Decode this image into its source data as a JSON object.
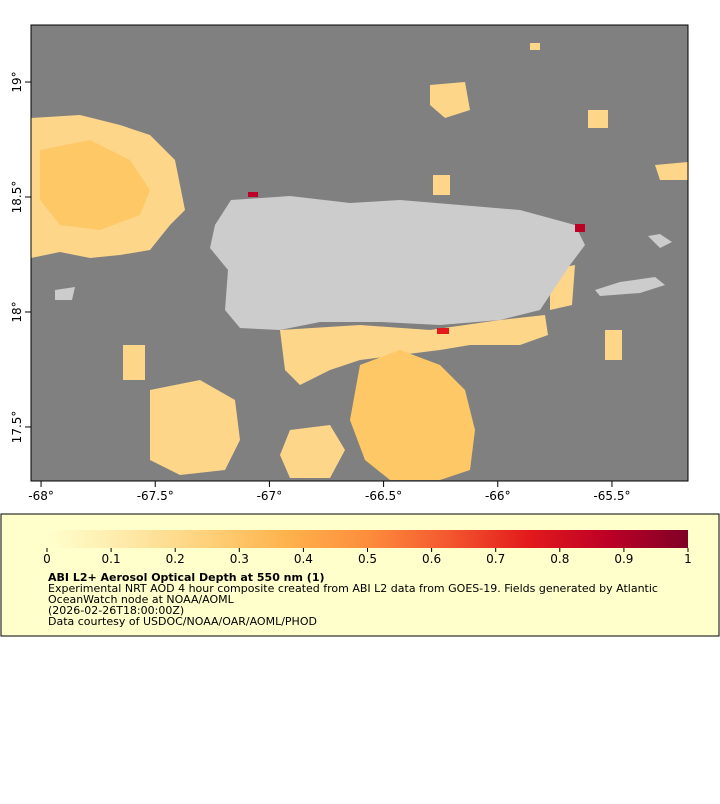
{
  "map": {
    "xticks": [
      {
        "value": -68,
        "label": "-68°"
      },
      {
        "value": -67.5,
        "label": "-67.5°"
      },
      {
        "value": -67,
        "label": "-67°"
      },
      {
        "value": -66.5,
        "label": "-66.5°"
      },
      {
        "value": -66,
        "label": "-66°"
      },
      {
        "value": -65.5,
        "label": "-65.5°"
      }
    ],
    "yticks": [
      {
        "value": 19,
        "label": "19°"
      },
      {
        "value": 18.5,
        "label": "18.5°"
      },
      {
        "value": 18,
        "label": "18°"
      },
      {
        "value": 17.5,
        "label": "17.5°"
      }
    ],
    "xlim": [
      -68.044,
      -65.167
    ],
    "ylim": [
      17.265,
      19.248
    ],
    "colorbar": {
      "ticks": [
        0,
        0.1,
        0.2,
        0.3,
        0.4,
        0.5,
        0.6,
        0.7,
        0.8,
        0.9,
        1
      ],
      "colors": [
        "#ffffcc",
        "#fee9a8",
        "#fed17a",
        "#feb24c",
        "#fd8d3c",
        "#f4582f",
        "#e31a1c",
        "#bd0026",
        "#800026"
      ]
    },
    "title": "ABI L2+ Aerosol Optical Depth at 550 nm (1)",
    "description": [
      "Experimental NRT AOD 4 hour composite created from ABI L2 data from GOES-19. Fields generated by Atlantic",
      "OceanWatch node at NOAA/AOML",
      "(2026-02-26T18:00:00Z)",
      "Data courtesy of USDOC/NOAA/OAR/AOML/PHOD"
    ]
  }
}
